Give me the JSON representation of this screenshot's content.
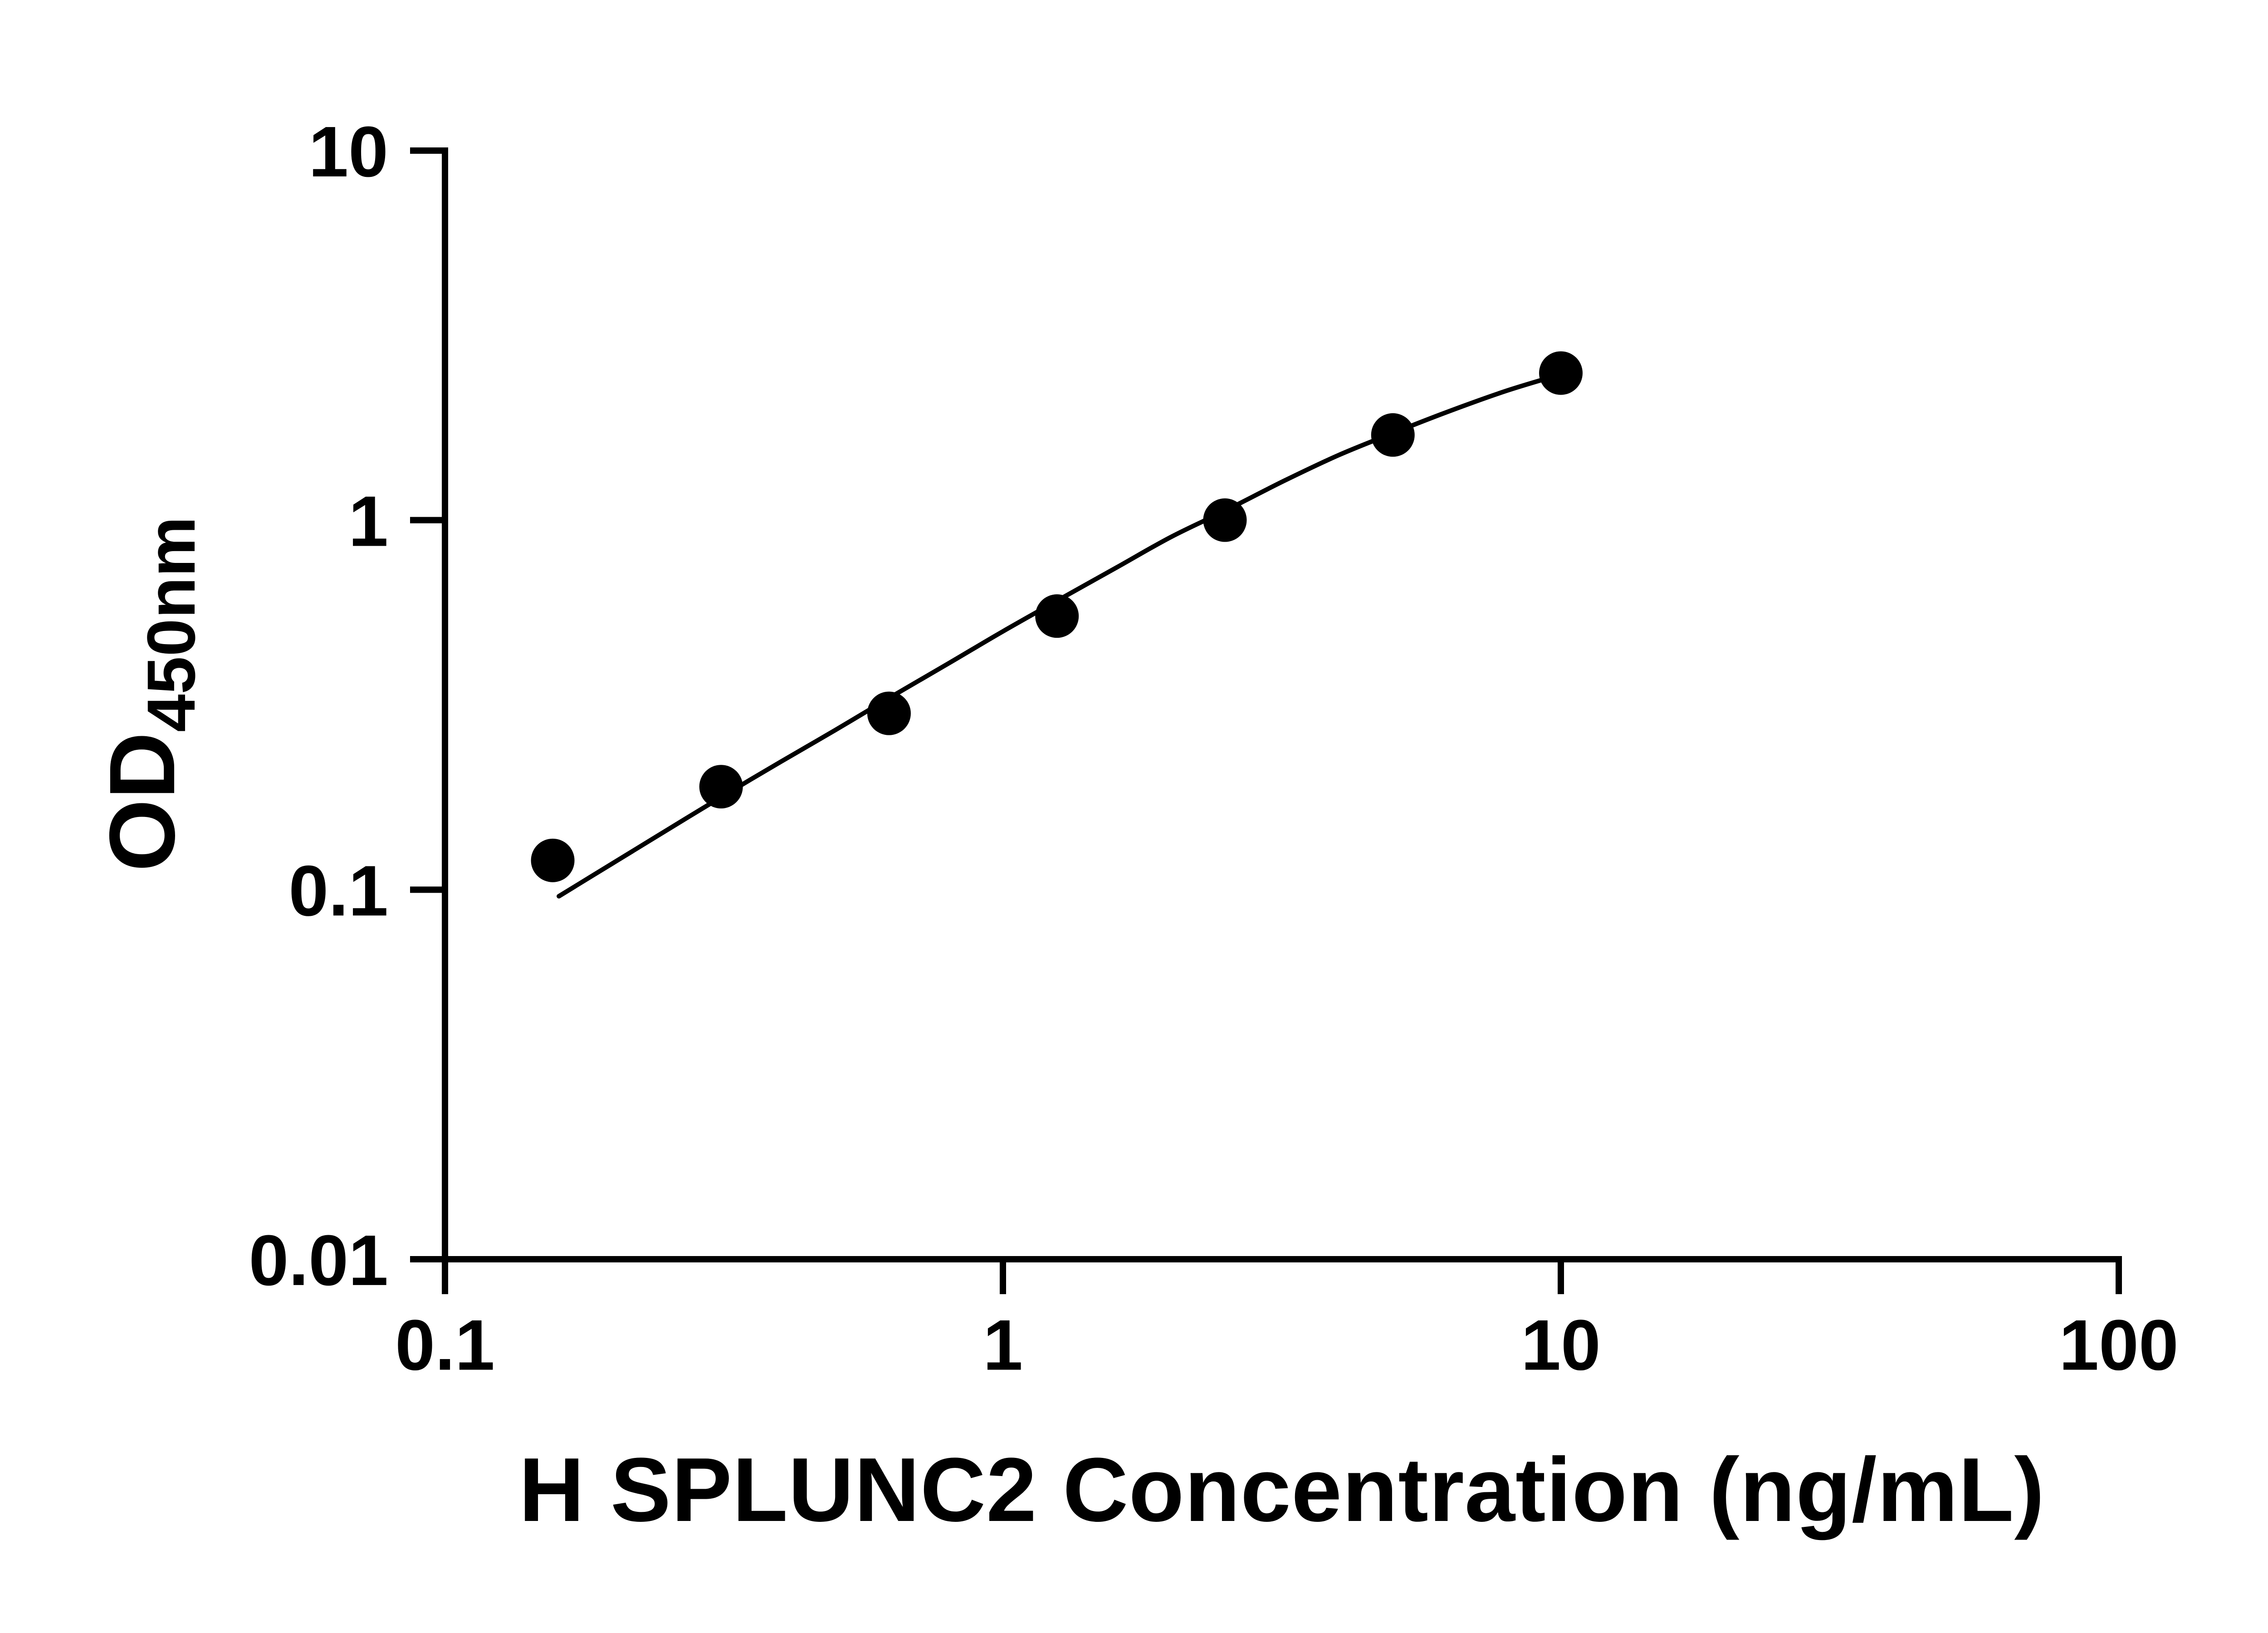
{
  "figure": {
    "background": "#ffffff"
  },
  "chart_data": {
    "type": "scatter",
    "title": "",
    "xlabel": "H SPLUNC2 Concentration (ng/mL)",
    "ylabel_main": "OD",
    "ylabel_sub": "450nm",
    "x_scale": "log",
    "y_scale": "log",
    "xlim": [
      0.1,
      100
    ],
    "ylim": [
      0.01,
      10
    ],
    "grid": false,
    "legend": "none",
    "axis_color": "#000000",
    "marker_color": "#000000",
    "line_color": "#000000",
    "x_ticks": [
      {
        "v": 0.1,
        "label": "0.1"
      },
      {
        "v": 1,
        "label": "1"
      },
      {
        "v": 10,
        "label": "10"
      },
      {
        "v": 100,
        "label": "100"
      }
    ],
    "y_ticks": [
      {
        "v": 0.01,
        "label": "0.01"
      },
      {
        "v": 0.1,
        "label": "0.1"
      },
      {
        "v": 1,
        "label": "1"
      },
      {
        "v": 10,
        "label": "10"
      }
    ],
    "points": [
      {
        "x": 0.156,
        "y": 0.12
      },
      {
        "x": 0.3125,
        "y": 0.19
      },
      {
        "x": 0.625,
        "y": 0.3
      },
      {
        "x": 1.25,
        "y": 0.55
      },
      {
        "x": 2.5,
        "y": 1.0
      },
      {
        "x": 5,
        "y": 1.7
      },
      {
        "x": 10,
        "y": 2.5
      }
    ],
    "fit_curve": [
      [
        0.16,
        0.096
      ],
      [
        0.2,
        0.118
      ],
      [
        0.25,
        0.145
      ],
      [
        0.3125,
        0.178
      ],
      [
        0.4,
        0.222
      ],
      [
        0.5,
        0.27
      ],
      [
        0.625,
        0.33
      ],
      [
        0.8,
        0.41
      ],
      [
        1.0,
        0.5
      ],
      [
        1.25,
        0.605
      ],
      [
        1.6,
        0.745
      ],
      [
        2.0,
        0.9
      ],
      [
        2.5,
        1.06
      ],
      [
        3.2,
        1.28
      ],
      [
        4.0,
        1.5
      ],
      [
        5.0,
        1.72
      ],
      [
        6.3,
        1.97
      ],
      [
        8.0,
        2.24
      ],
      [
        10.0,
        2.48
      ]
    ]
  }
}
